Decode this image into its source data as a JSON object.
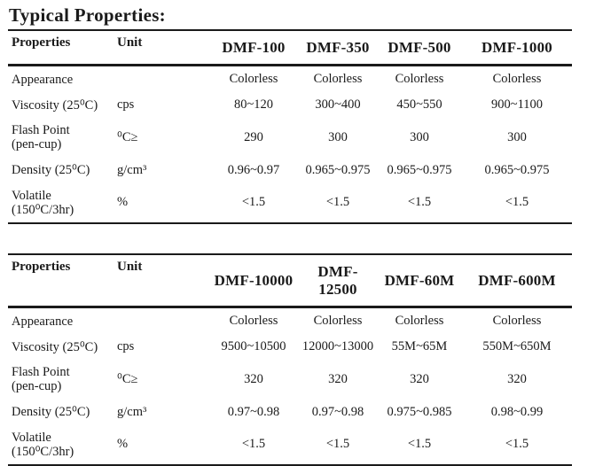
{
  "page": {
    "title": "Typical Properties:"
  },
  "colors": {
    "text": "#1a1a1a",
    "rule": "#1a1a1a",
    "background": "#ffffff"
  },
  "tables": [
    {
      "name": "dmf-properties-table-1",
      "columns": [
        "Properties",
        "Unit",
        "DMF-100",
        "DMF-350",
        "DMF-500",
        "DMF-1000"
      ],
      "rows": [
        {
          "label": "Appearance",
          "label2": "",
          "unit": "",
          "values": [
            "Colorless",
            "Colorless",
            "Colorless",
            "Colorless"
          ]
        },
        {
          "label": "Viscosity (25⁰C)",
          "label2": "",
          "unit": "cps",
          "values": [
            "80~120",
            "300~400",
            "450~550",
            "900~1100"
          ]
        },
        {
          "label": "Flash Point",
          "label2": "(pen-cup)",
          "unit": "⁰C≥",
          "values": [
            "290",
            "300",
            "300",
            "300"
          ]
        },
        {
          "label": "Density (25⁰C)",
          "label2": "",
          "unit": "g/cm³",
          "values": [
            "0.96~0.97",
            "0.965~0.975",
            "0.965~0.975",
            "0.965~0.975"
          ]
        },
        {
          "label": "Volatile",
          "label2": "(150⁰C/3hr)",
          "unit": "%",
          "values": [
            "<1.5",
            "<1.5",
            "<1.5",
            "<1.5"
          ]
        }
      ]
    },
    {
      "name": "dmf-properties-table-2",
      "columns": [
        "Properties",
        "Unit",
        "DMF-10000",
        "DMF-12500",
        "DMF-60M",
        "DMF-600M"
      ],
      "rows": [
        {
          "label": "Appearance",
          "label2": "",
          "unit": "",
          "values": [
            "Colorless",
            "Colorless",
            "Colorless",
            "Colorless"
          ]
        },
        {
          "label": "Viscosity (25⁰C)",
          "label2": "",
          "unit": "cps",
          "values": [
            "9500~10500",
            "12000~13000",
            "55M~65M",
            "550M~650M"
          ]
        },
        {
          "label": "Flash Point",
          "label2": "(pen-cup)",
          "unit": "⁰C≥",
          "values": [
            "320",
            "320",
            "320",
            "320"
          ]
        },
        {
          "label": "Density (25⁰C)",
          "label2": "",
          "unit": "g/cm³",
          "values": [
            "0.97~0.98",
            "0.97~0.98",
            "0.975~0.985",
            "0.98~0.99"
          ]
        },
        {
          "label": "Volatile",
          "label2": "(150⁰C/3hr)",
          "unit": "%",
          "values": [
            "<1.5",
            "<1.5",
            "<1.5",
            "<1.5"
          ]
        }
      ]
    }
  ]
}
